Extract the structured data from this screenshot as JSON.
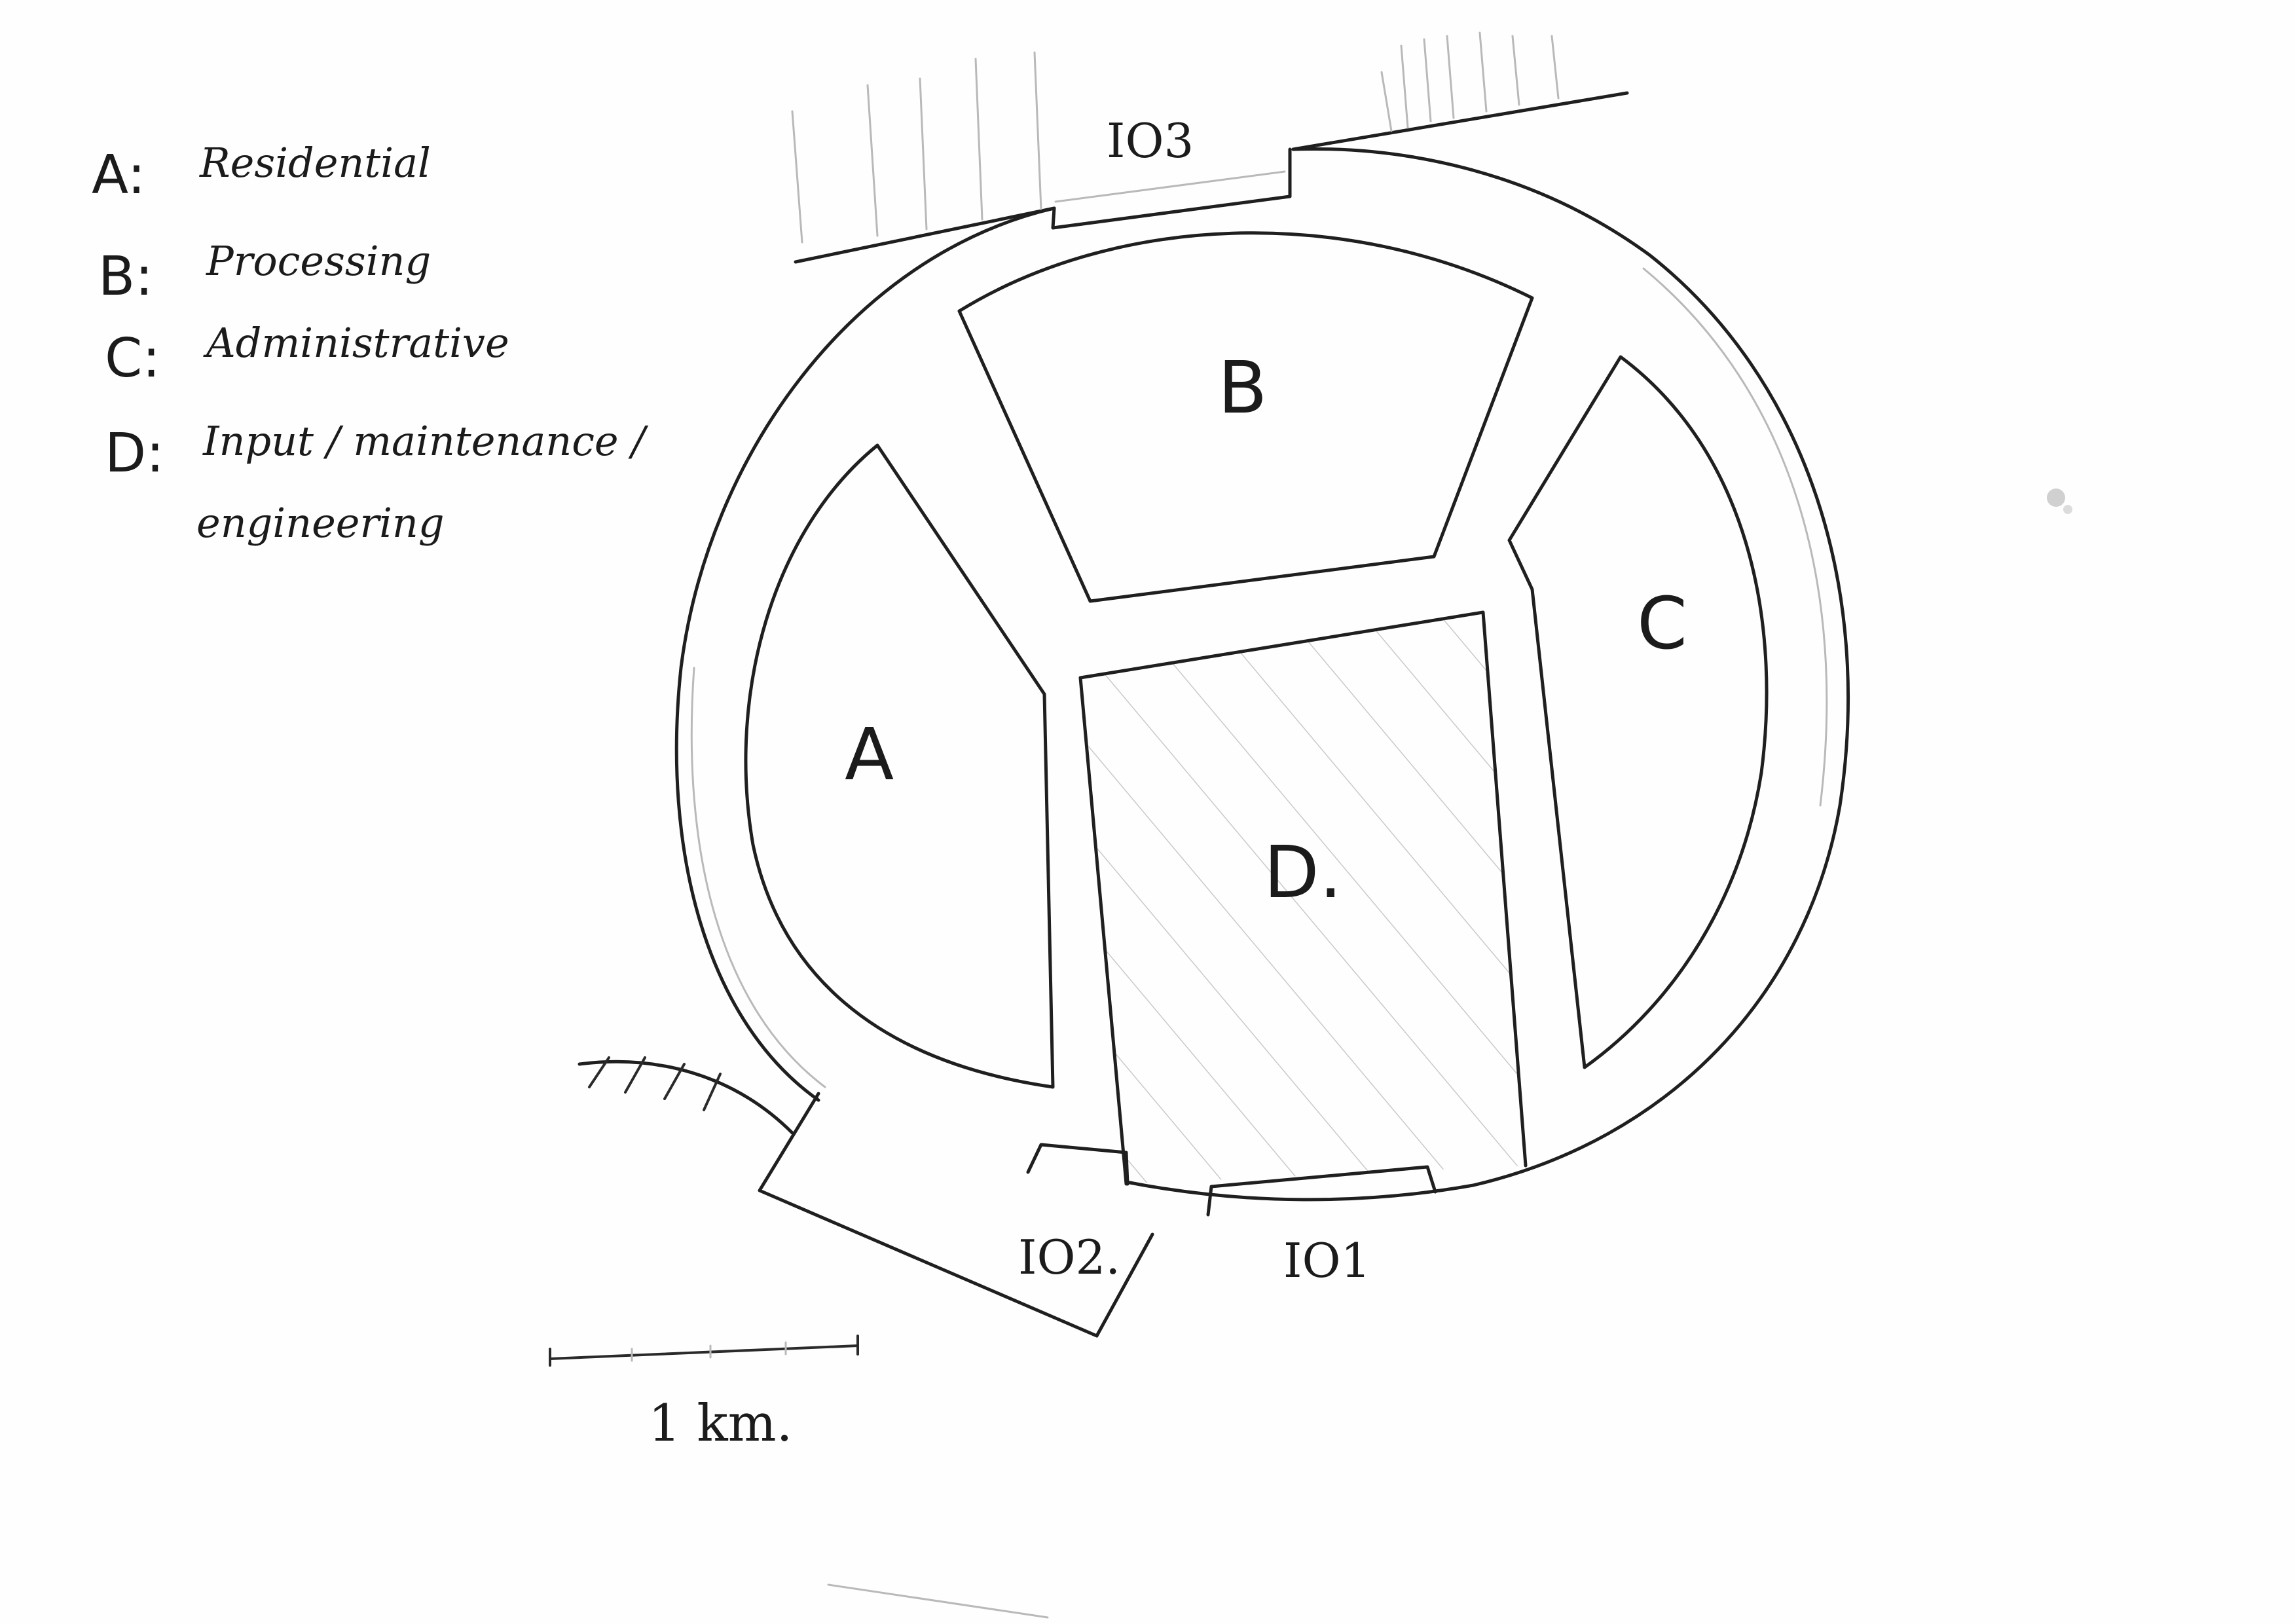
{
  "legend": [
    {
      "key": "A:",
      "text": "Residential"
    },
    {
      "key": "B:",
      "text": "Processing"
    },
    {
      "key": "C:",
      "text": "Administrative"
    },
    {
      "key": "D:",
      "text": "Input / maintenance /",
      "text2": "engineering"
    }
  ],
  "zones": {
    "a": "A",
    "b": "B",
    "c": "C",
    "d": "D."
  },
  "io": {
    "io1": "IO1",
    "io2": "IO2.",
    "io3": "IO3"
  },
  "scale": {
    "label": "1 km."
  },
  "colors": {
    "ink": "#1f1f1f",
    "pencil": "#b9b9b9",
    "paper": "#fefefe"
  }
}
